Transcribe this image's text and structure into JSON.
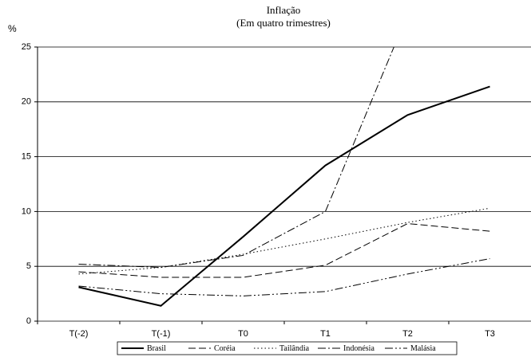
{
  "chart_data": {
    "type": "line",
    "title": "Inflação",
    "subtitle": "(Em quatro trimestres)",
    "y_label": "%",
    "categories": [
      "T(-2)",
      "T(-1)",
      "T0",
      "T1",
      "T2",
      "T3"
    ],
    "series": [
      {
        "name": "Brasil",
        "color": "#000000",
        "values": [
          3.1,
          1.4,
          7.7,
          14.2,
          18.8,
          21.4
        ]
      },
      {
        "name": "Coréia",
        "color": "#000000",
        "values": [
          4.5,
          4.0,
          4.0,
          5.1,
          8.9,
          8.2
        ]
      },
      {
        "name": "Tailândia",
        "color": "#000000",
        "values": [
          4.3,
          4.9,
          6.1,
          7.5,
          9.0,
          10.3
        ]
      },
      {
        "name": "Indonésia",
        "color": "#000000",
        "values": [
          5.2,
          4.9,
          6.0,
          10.0,
          28.0,
          null
        ]
      },
      {
        "name": "Malásia",
        "color": "#000000",
        "values": [
          3.2,
          2.5,
          2.3,
          2.7,
          4.3,
          5.7
        ]
      }
    ],
    "ylim": [
      0,
      25
    ],
    "yticks": [
      0,
      5,
      10,
      15,
      20,
      25
    ],
    "grid": true,
    "legend": "bottom"
  }
}
